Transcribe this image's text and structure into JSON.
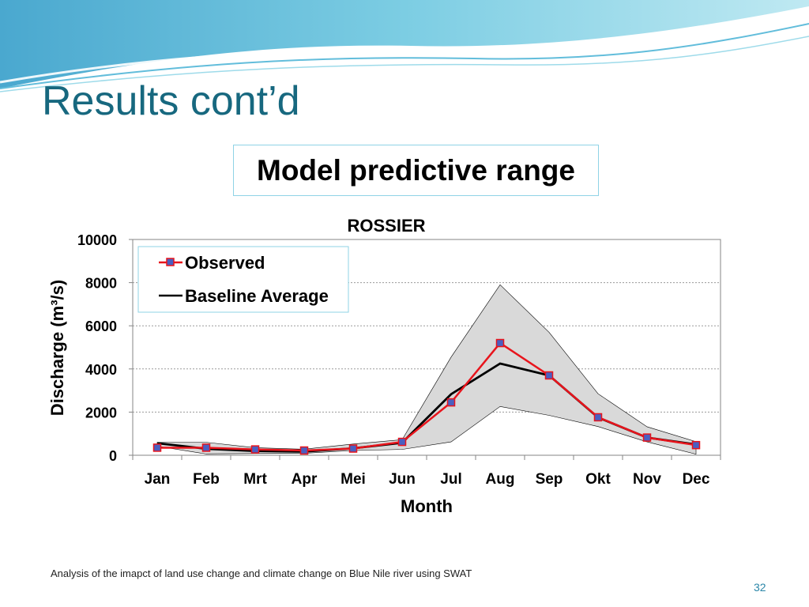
{
  "slide": {
    "title": "Results cont’d",
    "subtitle": "Model predictive range",
    "footer": "Analysis of the imapct of land use change and climate change on Blue Nile river using SWAT",
    "page_number": "32"
  },
  "chart_data": {
    "type": "line",
    "title": "ROSSIER",
    "xlabel": "Month",
    "ylabel": "Discharge (m³/s)",
    "categories": [
      "Jan",
      "Feb",
      "Mrt",
      "Apr",
      "Mei",
      "Jun",
      "Jul",
      "Aug",
      "Sep",
      "Okt",
      "Nov",
      "Dec"
    ],
    "ylim": [
      0,
      10000
    ],
    "yticks": [
      "0",
      "2000",
      "4000",
      "6000",
      "8000",
      "10000"
    ],
    "grid": true,
    "legend_position": "top-left",
    "series": [
      {
        "name": "Observed",
        "color": "#e8141c",
        "marker_color": "#4a5fc1",
        "values": [
          350,
          350,
          270,
          220,
          310,
          620,
          2450,
          5200,
          3700,
          1760,
          820,
          470
        ]
      },
      {
        "name": "Baseline Average",
        "color": "#000000",
        "values": [
          560,
          300,
          200,
          170,
          320,
          580,
          2830,
          4250,
          3700,
          1750,
          820,
          500
        ]
      }
    ],
    "band": {
      "fill": "#d9d9d9",
      "upper": [
        600,
        600,
        350,
        280,
        520,
        720,
        4550,
        7900,
        5700,
        2850,
        1320,
        630
      ],
      "lower": [
        420,
        60,
        80,
        90,
        220,
        270,
        620,
        2260,
        1850,
        1330,
        620,
        50
      ]
    }
  }
}
